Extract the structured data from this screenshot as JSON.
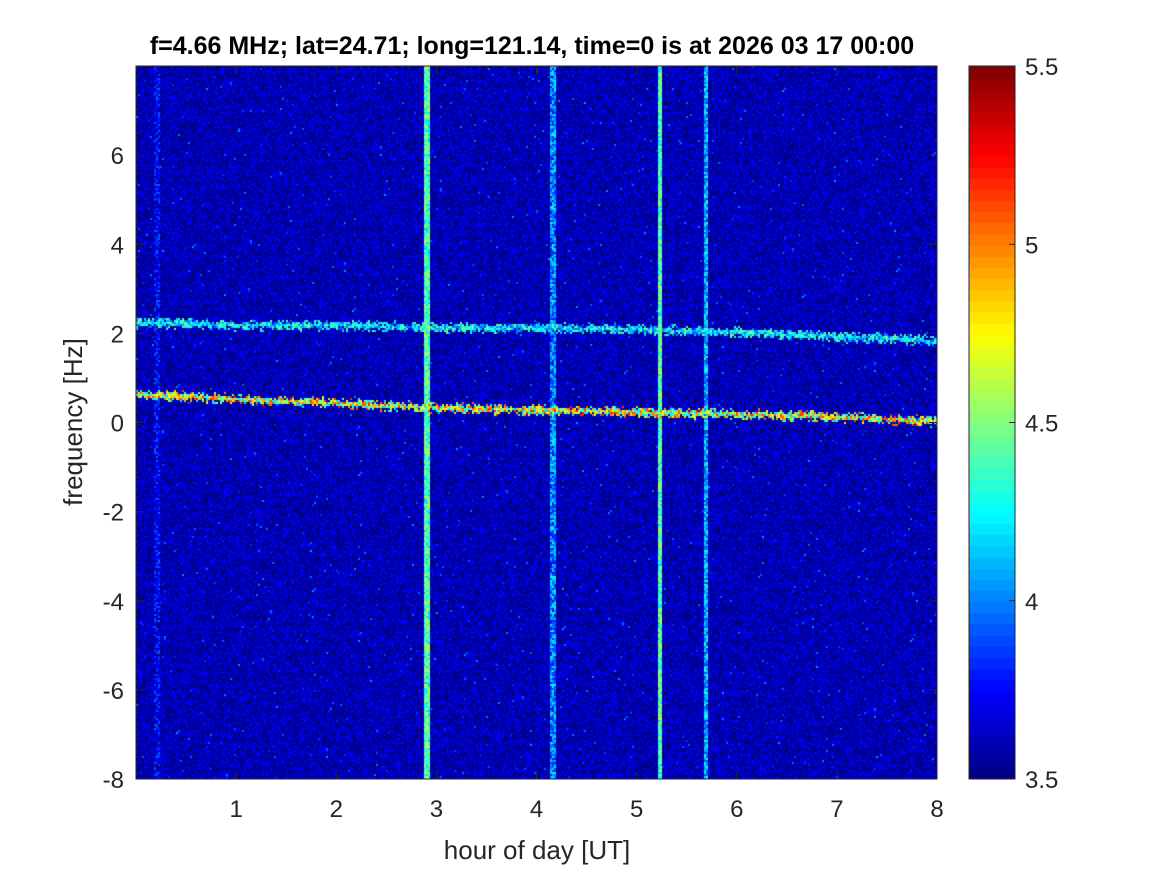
{
  "chart_data": {
    "type": "heatmap",
    "title": "f=4.66 MHz;  lat=24.71; long=121.14, time=0 is at 2026 03 17 00:00",
    "xlabel": "hour of day [UT]",
    "ylabel": "frequency [Hz]",
    "xlim": [
      0,
      8
    ],
    "ylim": [
      -8,
      8
    ],
    "xticks": [
      1,
      2,
      3,
      4,
      5,
      6,
      7,
      8
    ],
    "yticks": [
      -8,
      -6,
      -4,
      -2,
      0,
      2,
      4,
      6
    ],
    "colorbar": {
      "range": [
        3.5,
        5.5
      ],
      "ticks": [
        3.5,
        4,
        4.5,
        5,
        5.5
      ],
      "colormap": "jet"
    },
    "background_level": 3.6,
    "traces": [
      {
        "points": [
          [
            0,
            0.65
          ],
          [
            0.5,
            0.6
          ],
          [
            1,
            0.55
          ],
          [
            2,
            0.45
          ],
          [
            3,
            0.35
          ],
          [
            4,
            0.3
          ],
          [
            5,
            0.25
          ],
          [
            6,
            0.2
          ],
          [
            7,
            0.15
          ],
          [
            8,
            0.05
          ]
        ],
        "peak_level": 5.2
      },
      {
        "points": [
          [
            0,
            2.25
          ],
          [
            0.5,
            2.25
          ],
          [
            1,
            2.2
          ],
          [
            2,
            2.2
          ],
          [
            3,
            2.15
          ],
          [
            4,
            2.15
          ],
          [
            5,
            2.1
          ],
          [
            6,
            2.05
          ],
          [
            7,
            1.95
          ],
          [
            8,
            1.85
          ]
        ],
        "peak_level": 4.6
      }
    ],
    "vertical_stripes": [
      {
        "x": 0.2,
        "level": 3.8
      },
      {
        "x": 2.9,
        "level": 4.5
      },
      {
        "x": 4.15,
        "level": 4.1
      },
      {
        "x": 5.22,
        "level": 4.5
      },
      {
        "x": 5.68,
        "level": 4.2
      }
    ],
    "grid": false
  }
}
